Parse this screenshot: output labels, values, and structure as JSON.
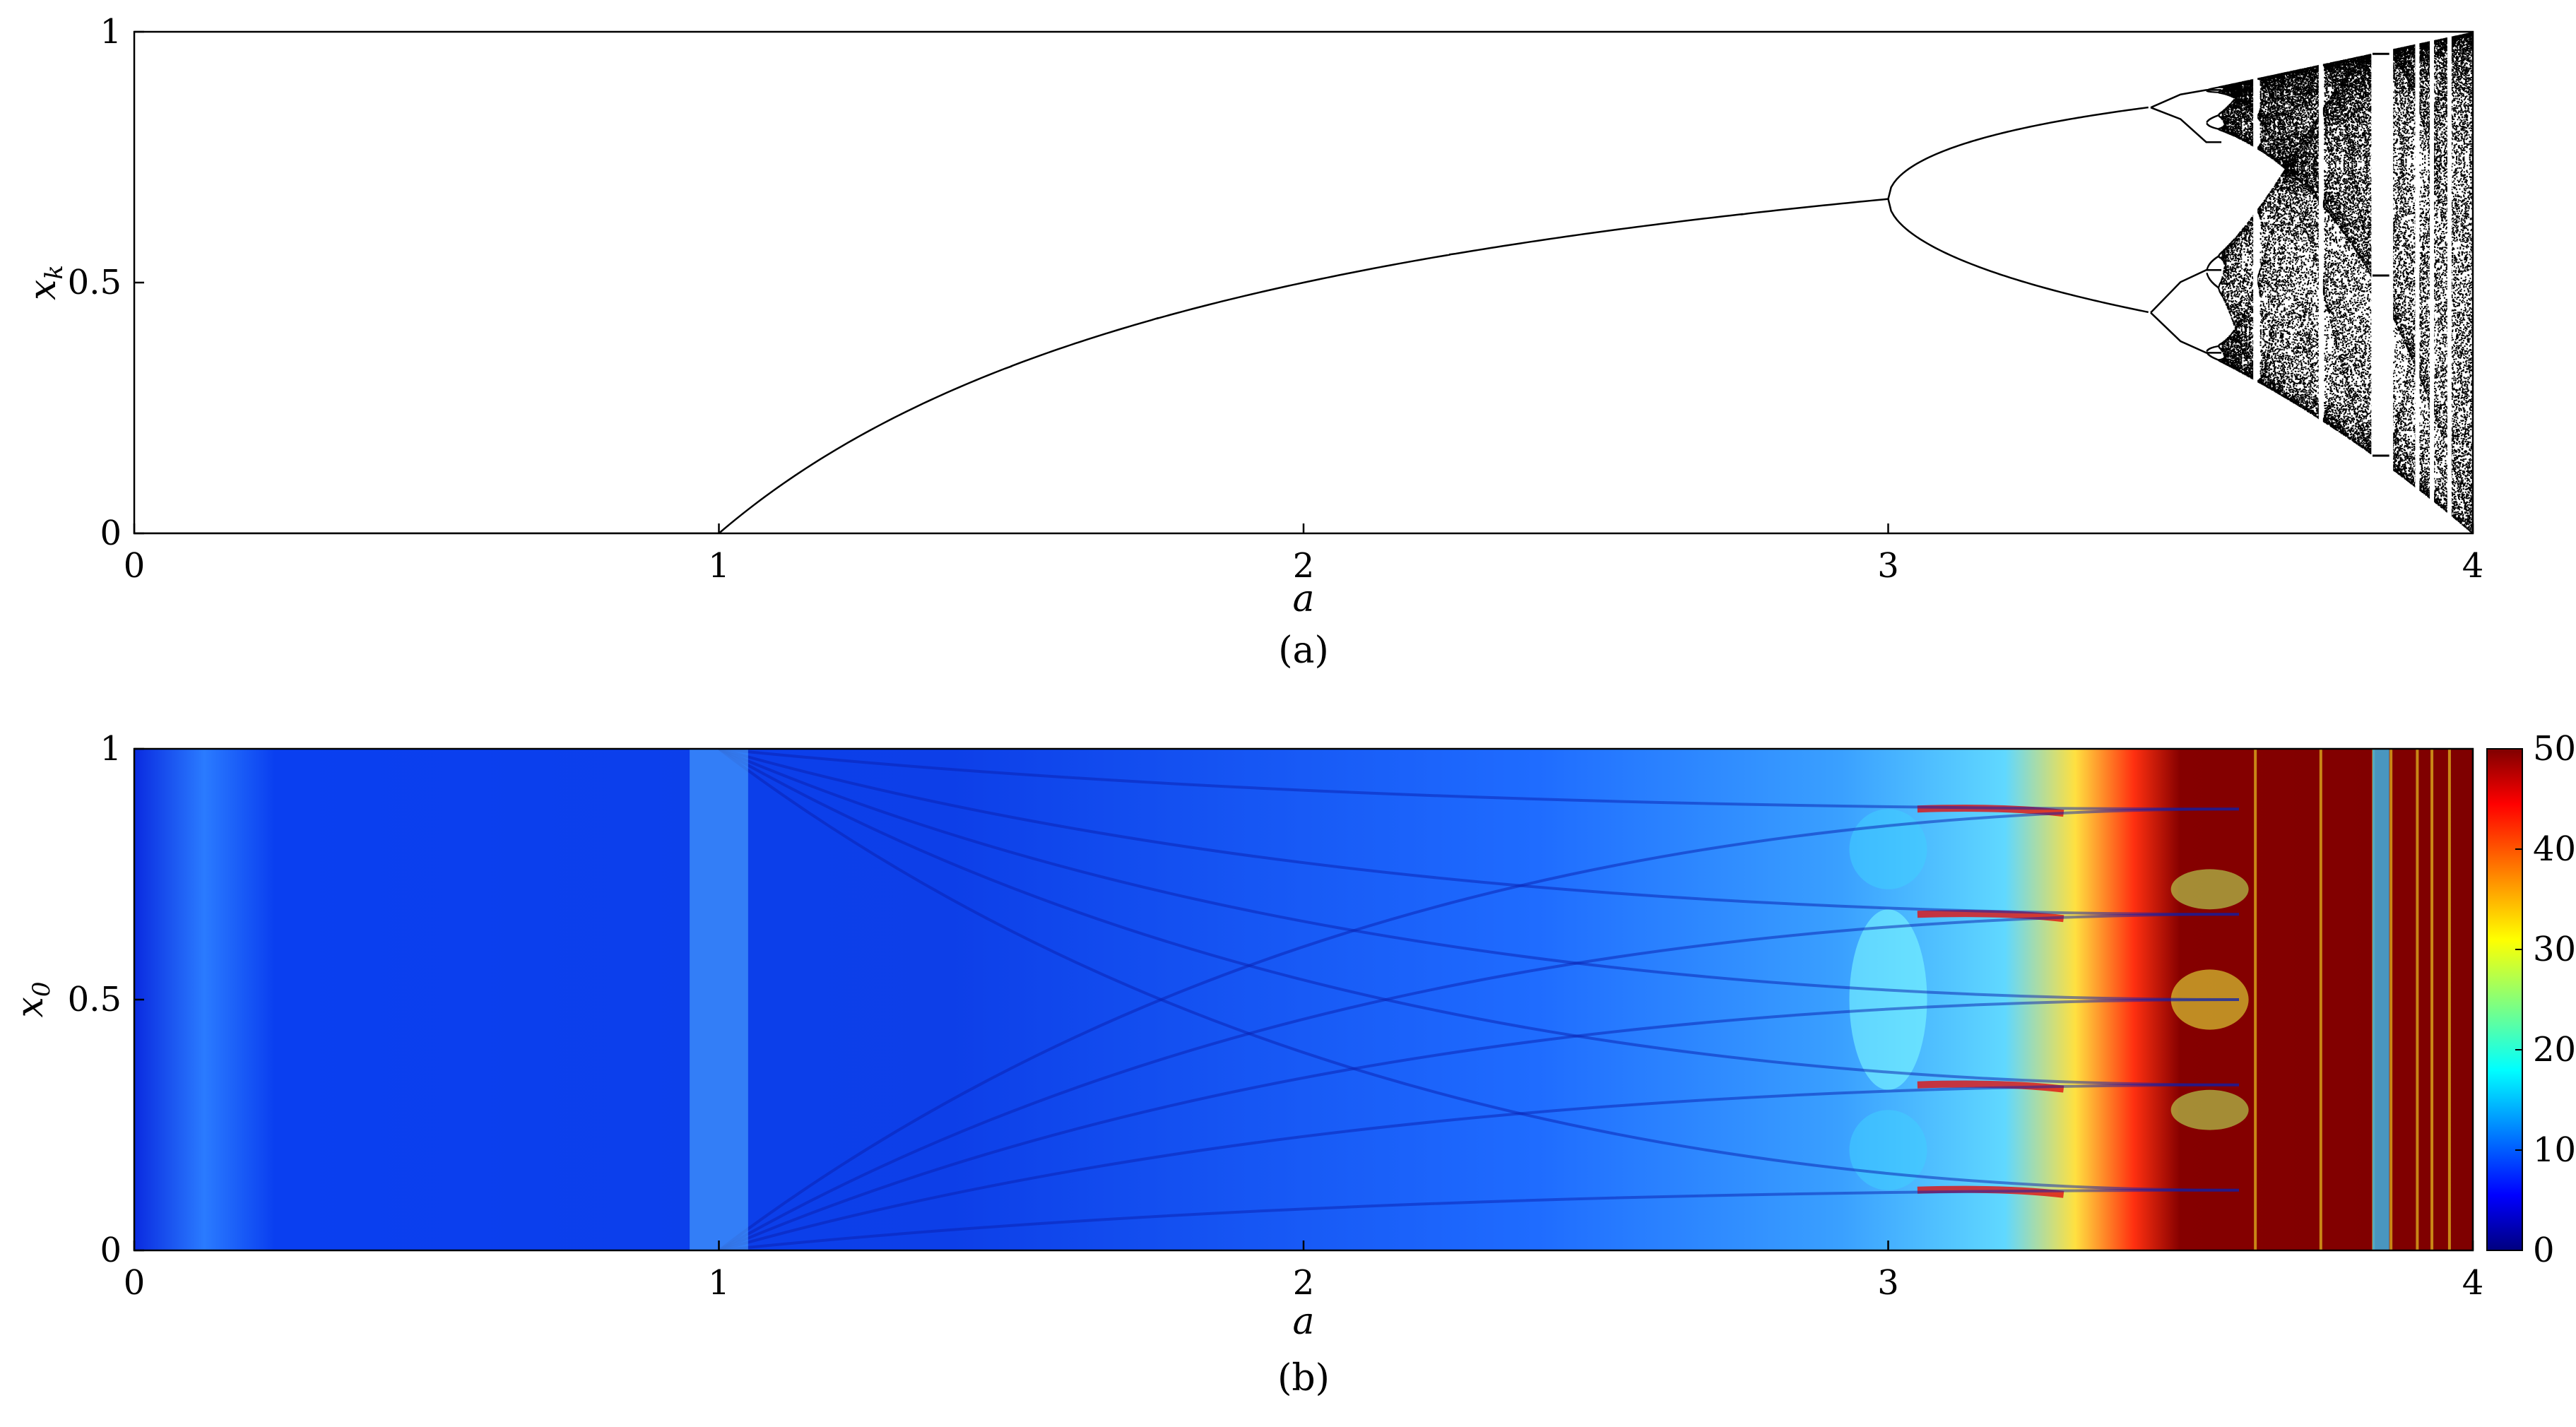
{
  "chart_data": [
    {
      "type": "scatter",
      "panel": "(a)",
      "caption": "(a)",
      "xlabel": "a",
      "ylabel": "x_k",
      "xlim": [
        0,
        4
      ],
      "ylim": [
        0,
        1
      ],
      "xticks": [
        0,
        1,
        2,
        3,
        4
      ],
      "yticks": [
        0,
        0.5,
        1
      ],
      "grid": false,
      "legend": "none",
      "marker_color": "#000000",
      "series": [
        {
          "name": "",
          "period1_branch": {
            "x": [
              0,
              0.5,
              1.0,
              1.1,
              1.25,
              1.5,
              1.75,
              2.0,
              2.25,
              2.5,
              2.75,
              3.0
            ],
            "y": [
              0,
              0,
              0,
              0.091,
              0.2,
              0.333,
              0.429,
              0.5,
              0.556,
              0.6,
              0.636,
              0.667
            ]
          },
          "period2_upper": {
            "x": [
              3.0,
              3.1,
              3.2,
              3.3,
              3.4,
              3.449
            ],
            "y": [
              0.667,
              0.765,
              0.799,
              0.824,
              0.842,
              0.849
            ]
          },
          "period2_lower": {
            "x": [
              3.0,
              3.1,
              3.2,
              3.3,
              3.4,
              3.449
            ],
            "y": [
              0.667,
              0.558,
              0.513,
              0.479,
              0.452,
              0.44
            ]
          },
          "period4": {
            "x": [
              3.449,
              3.5,
              3.544
            ],
            "y_branches": [
              [
                0.849,
                0.875,
                0.884
              ],
              [
                0.849,
                0.826,
                0.78
              ],
              [
                0.44,
                0.501,
                0.525
              ],
              [
                0.44,
                0.383,
                0.36
              ]
            ]
          },
          "chaos_onset_a": 3.5699,
          "chaotic_band_envelope": {
            "x": [
              3.57,
              3.6,
              3.7,
              3.8,
              3.9,
              4.0
            ],
            "upper": [
              0.892,
              0.9,
              0.925,
              0.95,
              0.975,
              1.0
            ],
            "lower": [
              0.35,
              0.32,
              0.24,
              0.16,
              0.08,
              0.0
            ]
          },
          "periodic_windows_a": [
            3.628,
            3.74,
            3.83,
            3.86,
            3.905,
            3.93,
            3.96
          ],
          "period3_window": {
            "start": 3.8284,
            "end": 3.857,
            "y": [
              0.155,
              0.514,
              0.956
            ]
          }
        }
      ]
    },
    {
      "type": "heatmap",
      "panel": "(b)",
      "caption": "(b)",
      "xlabel": "a",
      "ylabel": "x_0",
      "xlim": [
        0,
        4
      ],
      "ylim": [
        0,
        1
      ],
      "xticks": [
        0,
        1,
        2,
        3,
        4
      ],
      "yticks": [
        0,
        0.5,
        1
      ],
      "colorbar": {
        "min": 0,
        "max": 50,
        "ticks": [
          0,
          10,
          20,
          30,
          40,
          50
        ],
        "colormap": "jet"
      },
      "colormap_stops": [
        "#00007f",
        "#0000ff",
        "#007fff",
        "#00ffff",
        "#7fff7f",
        "#ffff00",
        "#ff7f00",
        "#ff0000",
        "#7f0000"
      ],
      "regions": [
        {
          "a_range": [
            0,
            3.57
          ],
          "value_range": [
            5,
            25
          ],
          "note": ""
        },
        {
          "a_range": [
            3.57,
            3.66
          ],
          "value_range": [
            20,
            50
          ],
          "note": ""
        },
        {
          "a_range": [
            3.66,
            4.0
          ],
          "value": 50,
          "note": ""
        },
        {
          "a_range": [
            3.828,
            3.857
          ],
          "value_range": [
            15,
            40
          ],
          "note": ""
        }
      ]
    }
  ]
}
